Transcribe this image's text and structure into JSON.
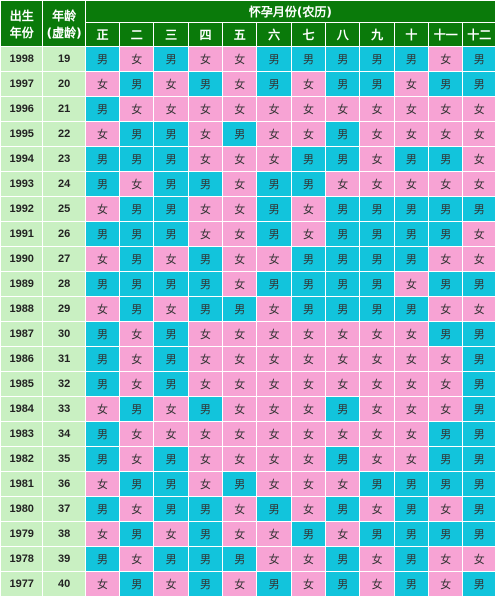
{
  "header": {
    "birth_year": "出生年份",
    "birth_year_l1": "出生",
    "birth_year_l2": "年份",
    "age_l1": "年龄",
    "age_l2": "(虚龄)",
    "month_title": "怀孕月份(农历)",
    "months": [
      "正",
      "二",
      "三",
      "四",
      "五",
      "六",
      "七",
      "八",
      "九",
      "十",
      "十一",
      "十二"
    ]
  },
  "labels": {
    "male": "男",
    "female": "女"
  },
  "colors": {
    "header": "#0a7a0a",
    "label_bg": "#c9f0c2",
    "male": "#12c4dc",
    "female": "#f7a3d4"
  },
  "rows": [
    {
      "year": "1998",
      "age": "19",
      "cells": [
        "男",
        "女",
        "男",
        "女",
        "女",
        "男",
        "男",
        "男",
        "男",
        "男",
        "女",
        "男"
      ]
    },
    {
      "year": "1997",
      "age": "20",
      "cells": [
        "女",
        "男",
        "女",
        "男",
        "女",
        "男",
        "女",
        "男",
        "男",
        "女",
        "男",
        "男"
      ]
    },
    {
      "year": "1996",
      "age": "21",
      "cells": [
        "男",
        "女",
        "女",
        "女",
        "女",
        "女",
        "女",
        "女",
        "女",
        "女",
        "女",
        "女"
      ]
    },
    {
      "year": "1995",
      "age": "22",
      "cells": [
        "女",
        "男",
        "男",
        "女",
        "男",
        "女",
        "女",
        "男",
        "女",
        "女",
        "女",
        "女"
      ]
    },
    {
      "year": "1994",
      "age": "23",
      "cells": [
        "男",
        "男",
        "男",
        "女",
        "女",
        "女",
        "男",
        "男",
        "女",
        "男",
        "男",
        "女"
      ]
    },
    {
      "year": "1993",
      "age": "24",
      "cells": [
        "男",
        "女",
        "男",
        "男",
        "女",
        "男",
        "男",
        "女",
        "女",
        "女",
        "女",
        "女"
      ]
    },
    {
      "year": "1992",
      "age": "25",
      "cells": [
        "女",
        "男",
        "男",
        "女",
        "女",
        "男",
        "女",
        "男",
        "男",
        "男",
        "男",
        "男"
      ]
    },
    {
      "year": "1991",
      "age": "26",
      "cells": [
        "男",
        "男",
        "男",
        "女",
        "女",
        "男",
        "女",
        "男",
        "男",
        "男",
        "男",
        "女"
      ]
    },
    {
      "year": "1990",
      "age": "27",
      "cells": [
        "女",
        "男",
        "女",
        "男",
        "女",
        "女",
        "男",
        "男",
        "男",
        "男",
        "女",
        "女"
      ]
    },
    {
      "year": "1989",
      "age": "28",
      "cells": [
        "男",
        "男",
        "男",
        "男",
        "女",
        "男",
        "男",
        "男",
        "男",
        "女",
        "男",
        "男"
      ]
    },
    {
      "year": "1988",
      "age": "29",
      "cells": [
        "女",
        "男",
        "女",
        "男",
        "男",
        "女",
        "男",
        "男",
        "男",
        "男",
        "女",
        "女"
      ]
    },
    {
      "year": "1987",
      "age": "30",
      "cells": [
        "男",
        "女",
        "男",
        "女",
        "女",
        "女",
        "女",
        "女",
        "女",
        "女",
        "男",
        "男"
      ]
    },
    {
      "year": "1986",
      "age": "31",
      "cells": [
        "男",
        "女",
        "男",
        "女",
        "女",
        "女",
        "女",
        "女",
        "女",
        "女",
        "女",
        "男"
      ]
    },
    {
      "year": "1985",
      "age": "32",
      "cells": [
        "男",
        "女",
        "男",
        "女",
        "女",
        "女",
        "女",
        "女",
        "女",
        "女",
        "女",
        "男"
      ]
    },
    {
      "year": "1984",
      "age": "33",
      "cells": [
        "女",
        "男",
        "女",
        "男",
        "女",
        "女",
        "女",
        "男",
        "女",
        "女",
        "女",
        "男"
      ]
    },
    {
      "year": "1983",
      "age": "34",
      "cells": [
        "男",
        "女",
        "女",
        "女",
        "女",
        "女",
        "女",
        "女",
        "女",
        "女",
        "男",
        "男"
      ]
    },
    {
      "year": "1982",
      "age": "35",
      "cells": [
        "男",
        "女",
        "男",
        "女",
        "女",
        "女",
        "女",
        "男",
        "女",
        "女",
        "男",
        "男"
      ]
    },
    {
      "year": "1981",
      "age": "36",
      "cells": [
        "女",
        "男",
        "男",
        "女",
        "男",
        "女",
        "女",
        "女",
        "男",
        "男",
        "男",
        "男"
      ]
    },
    {
      "year": "1980",
      "age": "37",
      "cells": [
        "男",
        "女",
        "男",
        "男",
        "女",
        "男",
        "女",
        "男",
        "女",
        "男",
        "女",
        "男"
      ]
    },
    {
      "year": "1979",
      "age": "38",
      "cells": [
        "女",
        "男",
        "女",
        "男",
        "女",
        "女",
        "男",
        "女",
        "男",
        "男",
        "男",
        "男"
      ]
    },
    {
      "year": "1978",
      "age": "39",
      "cells": [
        "男",
        "女",
        "男",
        "男",
        "男",
        "女",
        "女",
        "男",
        "女",
        "男",
        "女",
        "女"
      ]
    },
    {
      "year": "1977",
      "age": "40",
      "cells": [
        "女",
        "男",
        "女",
        "男",
        "女",
        "男",
        "女",
        "男",
        "女",
        "男",
        "女",
        "男"
      ]
    }
  ]
}
